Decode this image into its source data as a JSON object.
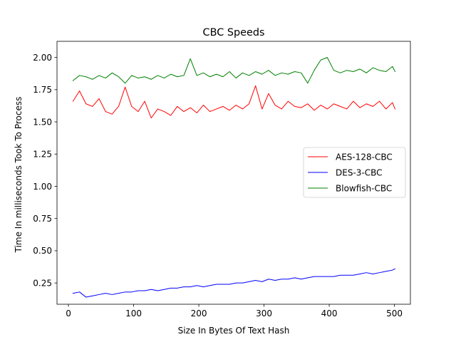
{
  "chart_data": {
    "type": "line",
    "title": "CBC Speeds",
    "xlabel": "Size In Bytes Of Text Hash",
    "ylabel": "Time In milliseconds Took To Process",
    "xlim": [
      -17.5,
      524.5
    ],
    "ylim": [
      0.085,
      2.125
    ],
    "xticks": [
      0,
      100,
      200,
      300,
      400,
      500
    ],
    "xtick_labels": [
      "0",
      "100",
      "200",
      "300",
      "400",
      "500"
    ],
    "yticks": [
      0.25,
      0.5,
      0.75,
      1.0,
      1.25,
      1.5,
      1.75,
      2.0
    ],
    "ytick_labels": [
      "0.25",
      "0.50",
      "0.75",
      "1.00",
      "1.25",
      "1.50",
      "1.75",
      "2.00"
    ],
    "grid": false,
    "legend_position": "center-right",
    "x": [
      7,
      17,
      27,
      37,
      47,
      57,
      67,
      77,
      87,
      97,
      107,
      117,
      127,
      137,
      147,
      157,
      167,
      177,
      187,
      197,
      207,
      217,
      227,
      237,
      247,
      257,
      267,
      277,
      287,
      297,
      307,
      317,
      327,
      337,
      347,
      357,
      367,
      377,
      387,
      397,
      407,
      417,
      427,
      437,
      447,
      457,
      467,
      477,
      487,
      497,
      501
    ],
    "series": [
      {
        "name": "AES-128-CBC",
        "color": "#ff0000",
        "values": [
          1.66,
          1.74,
          1.64,
          1.62,
          1.68,
          1.58,
          1.56,
          1.62,
          1.77,
          1.62,
          1.58,
          1.66,
          1.53,
          1.6,
          1.58,
          1.55,
          1.62,
          1.58,
          1.61,
          1.57,
          1.63,
          1.58,
          1.6,
          1.62,
          1.59,
          1.63,
          1.6,
          1.64,
          1.78,
          1.6,
          1.72,
          1.63,
          1.6,
          1.66,
          1.62,
          1.61,
          1.64,
          1.59,
          1.63,
          1.6,
          1.64,
          1.62,
          1.6,
          1.66,
          1.61,
          1.64,
          1.62,
          1.66,
          1.6,
          1.65,
          1.6
        ]
      },
      {
        "name": "DES-3-CBC",
        "color": "#0000ff",
        "values": [
          0.17,
          0.18,
          0.14,
          0.15,
          0.16,
          0.17,
          0.16,
          0.17,
          0.18,
          0.18,
          0.19,
          0.19,
          0.2,
          0.19,
          0.2,
          0.21,
          0.21,
          0.22,
          0.22,
          0.23,
          0.22,
          0.23,
          0.24,
          0.24,
          0.24,
          0.25,
          0.25,
          0.26,
          0.27,
          0.26,
          0.28,
          0.27,
          0.28,
          0.28,
          0.29,
          0.28,
          0.29,
          0.3,
          0.3,
          0.3,
          0.3,
          0.31,
          0.31,
          0.31,
          0.32,
          0.33,
          0.32,
          0.33,
          0.34,
          0.35,
          0.36
        ]
      },
      {
        "name": "Blowfish-CBC",
        "color": "#008000",
        "values": [
          1.82,
          1.86,
          1.85,
          1.83,
          1.86,
          1.84,
          1.88,
          1.85,
          1.8,
          1.86,
          1.84,
          1.85,
          1.83,
          1.86,
          1.84,
          1.87,
          1.85,
          1.86,
          1.99,
          1.86,
          1.88,
          1.85,
          1.87,
          1.85,
          1.89,
          1.84,
          1.88,
          1.86,
          1.89,
          1.87,
          1.9,
          1.86,
          1.88,
          1.87,
          1.89,
          1.88,
          1.8,
          1.9,
          1.98,
          2.0,
          1.9,
          1.88,
          1.9,
          1.89,
          1.91,
          1.88,
          1.92,
          1.9,
          1.89,
          1.93,
          1.89
        ]
      }
    ]
  }
}
